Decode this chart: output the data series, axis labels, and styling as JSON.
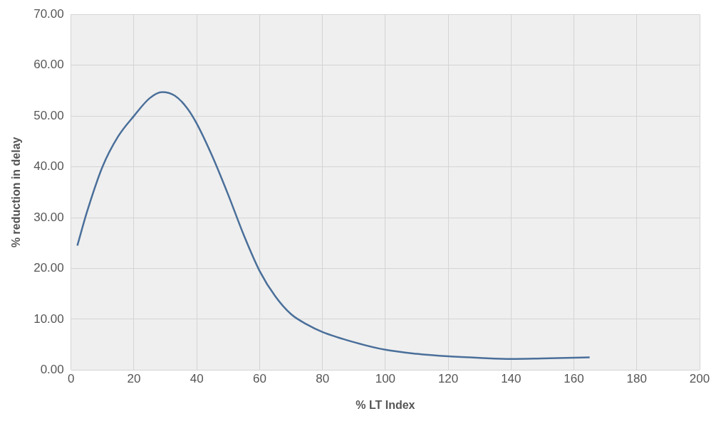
{
  "chart_data": {
    "type": "line",
    "xlabel": "% LT Index",
    "ylabel": "% reduction in delay",
    "x": [
      2,
      5,
      10,
      15,
      20,
      25,
      29,
      33,
      37,
      40,
      45,
      50,
      55,
      60,
      65,
      70,
      75,
      80,
      90,
      100,
      110,
      120,
      130,
      140,
      150,
      165
    ],
    "series": [
      {
        "color": "#4a6f9a",
        "values": [
          24.5,
          31,
          40,
          46,
          50,
          53.5,
          54.7,
          54,
          51.5,
          48.5,
          42,
          34.5,
          26.5,
          19.5,
          14.5,
          11,
          9,
          7.5,
          5.5,
          4,
          3.2,
          2.7,
          2.4,
          2.2,
          2.3,
          2.5
        ]
      }
    ],
    "xlim": [
      0,
      200
    ],
    "xticks": [
      0,
      20,
      40,
      60,
      80,
      100,
      120,
      140,
      160,
      180,
      200
    ],
    "ylim": [
      0,
      70
    ],
    "yticks": [
      {
        "value": 0,
        "label": "0.00"
      },
      {
        "value": 10,
        "label": "10.00"
      },
      {
        "value": 20,
        "label": "20.00"
      },
      {
        "value": 30,
        "label": "30.00"
      },
      {
        "value": 40,
        "label": "40.00"
      },
      {
        "value": 50,
        "label": "50.00"
      },
      {
        "value": 60,
        "label": "60.00"
      },
      {
        "value": 70,
        "label": "70.00"
      }
    ],
    "grid": true,
    "marker": "none",
    "line_style": "solid",
    "legend": false
  }
}
